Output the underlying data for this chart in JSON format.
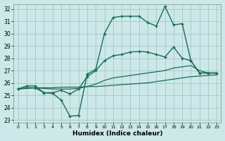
{
  "bg_color": "#cce8e8",
  "grid_color": "#aacccc",
  "line_color": "#1a6b5a",
  "xlabel": "Humidex (Indice chaleur)",
  "xlim": [
    -0.5,
    23.5
  ],
  "ylim": [
    22.8,
    32.4
  ],
  "yticks": [
    23,
    24,
    25,
    26,
    27,
    28,
    29,
    30,
    31,
    32
  ],
  "xticks": [
    0,
    1,
    2,
    3,
    4,
    5,
    6,
    7,
    8,
    9,
    10,
    11,
    12,
    13,
    14,
    15,
    16,
    17,
    18,
    19,
    20,
    21,
    22,
    23
  ],
  "series": [
    {
      "x": [
        0,
        1,
        2,
        3,
        4,
        5,
        6,
        7,
        8,
        9,
        10,
        11,
        12,
        13,
        14,
        15,
        16,
        17,
        18,
        19,
        20,
        21,
        22,
        23
      ],
      "y": [
        25.5,
        25.6,
        25.6,
        25.6,
        25.6,
        25.65,
        25.65,
        25.65,
        25.7,
        25.7,
        25.75,
        25.8,
        25.85,
        25.9,
        25.95,
        26.0,
        26.1,
        26.2,
        26.3,
        26.4,
        26.5,
        26.55,
        26.6,
        26.65
      ],
      "has_marker": false,
      "linewidth": 0.9
    },
    {
      "x": [
        0,
        1,
        2,
        3,
        4,
        5,
        6,
        7,
        8,
        9,
        10,
        11,
        12,
        13,
        14,
        15,
        16,
        17,
        18,
        19,
        20,
        21,
        22,
        23
      ],
      "y": [
        25.5,
        25.6,
        25.6,
        25.55,
        25.5,
        25.5,
        25.5,
        25.55,
        25.7,
        25.9,
        26.2,
        26.4,
        26.5,
        26.6,
        26.7,
        26.8,
        26.9,
        27.0,
        27.2,
        27.3,
        27.4,
        27.0,
        26.8,
        26.8
      ],
      "has_marker": false,
      "linewidth": 0.9
    },
    {
      "x": [
        0,
        1,
        2,
        3,
        4,
        5,
        6,
        7,
        8,
        9,
        10,
        11,
        12,
        13,
        14,
        15,
        16,
        17,
        18,
        19,
        20,
        21,
        22,
        23
      ],
      "y": [
        25.5,
        25.75,
        25.75,
        25.2,
        25.2,
        25.4,
        25.1,
        25.5,
        26.5,
        27.0,
        27.8,
        28.2,
        28.3,
        28.5,
        28.55,
        28.5,
        28.3,
        28.1,
        28.9,
        28.0,
        27.8,
        26.8,
        26.8,
        26.8
      ],
      "has_marker": true,
      "linewidth": 1.0
    },
    {
      "x": [
        0,
        2,
        3,
        4,
        5,
        6,
        7,
        8,
        9,
        10,
        11,
        12,
        13,
        14,
        15,
        16,
        17,
        18,
        19,
        20,
        21,
        22,
        23
      ],
      "y": [
        25.5,
        25.6,
        25.2,
        25.15,
        24.6,
        23.3,
        23.35,
        26.7,
        27.1,
        30.0,
        31.3,
        31.4,
        31.4,
        31.4,
        30.9,
        30.6,
        32.2,
        30.7,
        30.8,
        27.8,
        26.8,
        26.8,
        26.8
      ],
      "has_marker": true,
      "linewidth": 1.0
    }
  ]
}
